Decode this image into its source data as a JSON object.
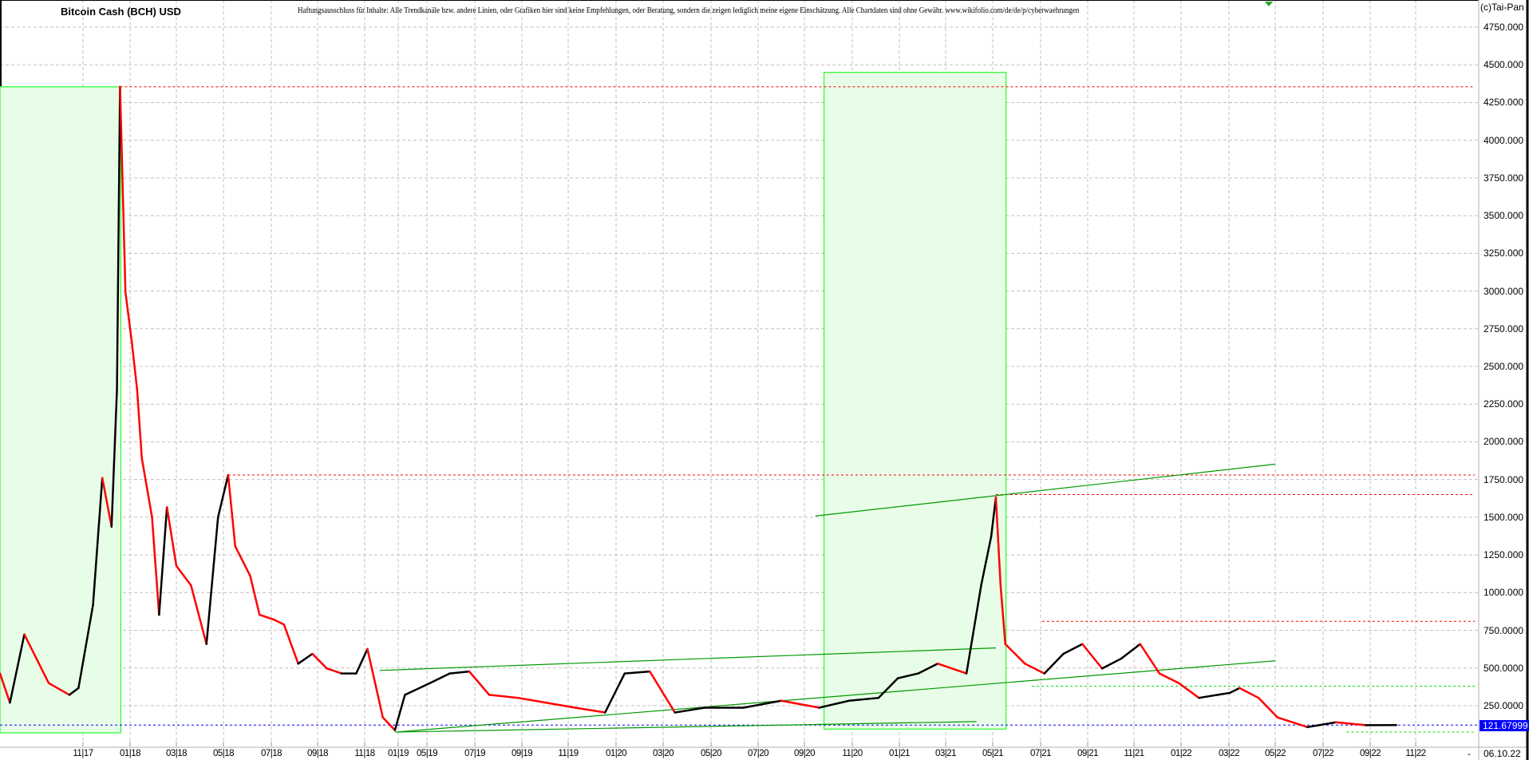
{
  "header": {
    "title": "Bitcoin Cash (BCH) USD",
    "disclaimer": "Haftungsausschluss für Inhalte: Alle Trendkanäle bzw. andere Linien, oder Grafiken hier sind keine Empfehlungen, oder Beratung, sondern die zeigen lediglich meine eigene Einschätzung. Alle Chartdaten sind ohne Gewähr.  www.wikifolio.com/de/de/p/cyberwaehrungen",
    "copyright": "(c)Tai-Pan"
  },
  "footer": {
    "separator": "-",
    "current_date": "06.10.22"
  },
  "colors": {
    "up": "#000000",
    "down": "#ff0000",
    "zone_fill": "#e8fde8",
    "zone_stroke": "#00ff00",
    "trend": "#009900",
    "resistance": "#ff0000",
    "support": "#00dd00",
    "last_price": "#0000ff",
    "grid": "#c0c0c0"
  },
  "chart_data": {
    "type": "line",
    "title": "Bitcoin Cash (BCH) USD",
    "ylim": [
      0,
      4900
    ],
    "grid": true,
    "y_ticks": [
      "250.0000",
      "500.0000",
      "750.0000",
      "1000.000",
      "1250.000",
      "1500.000",
      "1750.000",
      "2000.000",
      "2250.000",
      "2500.000",
      "2750.000",
      "3000.000",
      "3250.000",
      "3500.000",
      "3750.000",
      "4000.000",
      "4250.000",
      "4500.000",
      "4750.000"
    ],
    "x_ticks": [
      "11|17",
      "01|18",
      "03|18",
      "05|18",
      "07|18",
      "09|18",
      "11|18",
      "01|19",
      "05|19",
      "07|19",
      "09|19",
      "11|19",
      "01|20",
      "03|20",
      "05|20",
      "07|20",
      "09|20",
      "11|20",
      "01|21",
      "03|21",
      "05|21",
      "07|21",
      "09|21",
      "11|21",
      "01|22",
      "03|22",
      "05|22",
      "07|22",
      "09|22",
      "11|22"
    ],
    "last_price": "121.67999",
    "series": [
      {
        "points": [
          [
            "2017-08-01",
            464
          ],
          [
            "2017-08-12",
            270
          ],
          [
            "2017-08-28",
            723
          ],
          [
            "2017-09-24",
            400
          ],
          [
            "2017-10-17",
            322
          ],
          [
            "2017-10-27",
            367
          ],
          [
            "2017-11-14",
            918
          ],
          [
            "2017-11-26",
            1760
          ],
          [
            "2017-12-08",
            1437
          ],
          [
            "2017-12-15",
            2345
          ],
          [
            "2017-12-19",
            4354
          ],
          [
            "2017-12-26",
            2993
          ],
          [
            "2018-01-03",
            2670
          ],
          [
            "2018-01-10",
            2345
          ],
          [
            "2018-01-16",
            1890
          ],
          [
            "2018-01-29",
            1500
          ],
          [
            "2018-02-07",
            853
          ],
          [
            "2018-02-17",
            1566
          ],
          [
            "2018-03-01",
            1177
          ],
          [
            "2018-03-20",
            1048
          ],
          [
            "2018-04-09",
            659
          ],
          [
            "2018-04-24",
            1500
          ],
          [
            "2018-05-07",
            1780
          ],
          [
            "2018-05-16",
            1307
          ],
          [
            "2018-06-04",
            1112
          ],
          [
            "2018-06-16",
            853
          ],
          [
            "2018-07-05",
            820
          ],
          [
            "2018-07-18",
            788
          ],
          [
            "2018-08-06",
            529
          ],
          [
            "2018-08-25",
            594
          ],
          [
            "2018-09-13",
            497
          ],
          [
            "2018-10-02",
            464
          ],
          [
            "2018-10-21",
            464
          ],
          [
            "2018-11-06",
            626
          ],
          [
            "2018-11-20",
            400
          ],
          [
            "2018-12-04",
            172
          ],
          [
            "2018-12-26",
            88
          ],
          [
            "2019-01-29",
            322
          ],
          [
            "2019-05-05",
            400
          ],
          [
            "2019-05-30",
            464
          ],
          [
            "2019-06-24",
            477
          ],
          [
            "2019-07-20",
            322
          ],
          [
            "2019-08-27",
            302
          ],
          [
            "2019-10-03",
            270
          ],
          [
            "2019-11-10",
            237
          ],
          [
            "2019-12-18",
            205
          ],
          [
            "2020-01-12",
            464
          ],
          [
            "2020-02-13",
            477
          ],
          [
            "2020-03-16",
            205
          ],
          [
            "2020-04-23",
            237
          ],
          [
            "2020-06-12",
            237
          ],
          [
            "2020-08-01",
            283
          ],
          [
            "2020-09-20",
            237
          ],
          [
            "2020-10-28",
            283
          ],
          [
            "2020-12-05",
            302
          ],
          [
            "2020-12-30",
            432
          ],
          [
            "2021-01-25",
            464
          ],
          [
            "2021-02-19",
            529
          ],
          [
            "2021-03-28",
            464
          ],
          [
            "2021-04-16",
            1048
          ],
          [
            "2021-04-29",
            1372
          ],
          [
            "2021-05-05",
            1631
          ],
          [
            "2021-05-11",
            1048
          ],
          [
            "2021-05-17",
            659
          ],
          [
            "2021-06-11",
            529
          ],
          [
            "2021-07-06",
            464
          ],
          [
            "2021-07-31",
            594
          ],
          [
            "2021-08-25",
            659
          ],
          [
            "2021-09-20",
            497
          ],
          [
            "2021-10-15",
            562
          ],
          [
            "2021-11-09",
            659
          ],
          [
            "2021-12-04",
            464
          ],
          [
            "2021-12-29",
            400
          ],
          [
            "2022-01-23",
            302
          ],
          [
            "2022-03-02",
            335
          ],
          [
            "2022-03-15",
            367
          ],
          [
            "2022-04-09",
            302
          ],
          [
            "2022-05-04",
            172
          ],
          [
            "2022-06-11",
            108
          ],
          [
            "2022-07-18",
            140
          ],
          [
            "2022-08-26",
            121
          ],
          [
            "2022-10-06",
            121.68
          ]
        ]
      }
    ],
    "annotations": {
      "zones": [
        {
          "from": "2017-08-01",
          "to": "2017-12-20",
          "low": 0,
          "high": 4354
        },
        {
          "from": "2020-09-26",
          "to": "2021-05-18",
          "low": 95,
          "high": 4450
        }
      ],
      "horizontal_lines": [
        {
          "value": 4354,
          "from": "2017-12-19",
          "style": "resistance"
        },
        {
          "value": 1780,
          "from": "2018-05-07",
          "style": "resistance"
        },
        {
          "value": 1650,
          "from": "2021-05-05",
          "style": "resistance"
        },
        {
          "value": 810,
          "from": "2021-07-03",
          "style": "resistance"
        },
        {
          "value": 380,
          "from": "2021-06-20",
          "style": "support"
        },
        {
          "value": 75,
          "from": "2022-08-01",
          "style": "support"
        },
        {
          "value": 121.68,
          "from": "2017-08-01",
          "style": "last_price"
        }
      ],
      "trend_lines": [
        {
          "from": [
            "2020-09-15",
            1508
          ],
          "to": [
            "2022-05-01",
            1852
          ]
        },
        {
          "from": [
            "2018-11-28",
            484
          ],
          "to": [
            "2021-05-05",
            633
          ]
        },
        {
          "from": [
            "2018-12-26",
            75
          ],
          "to": [
            "2022-05-01",
            548
          ]
        },
        {
          "from": [
            "2018-12-26",
            75
          ],
          "to": [
            "2021-04-10",
            145
          ]
        }
      ]
    }
  }
}
